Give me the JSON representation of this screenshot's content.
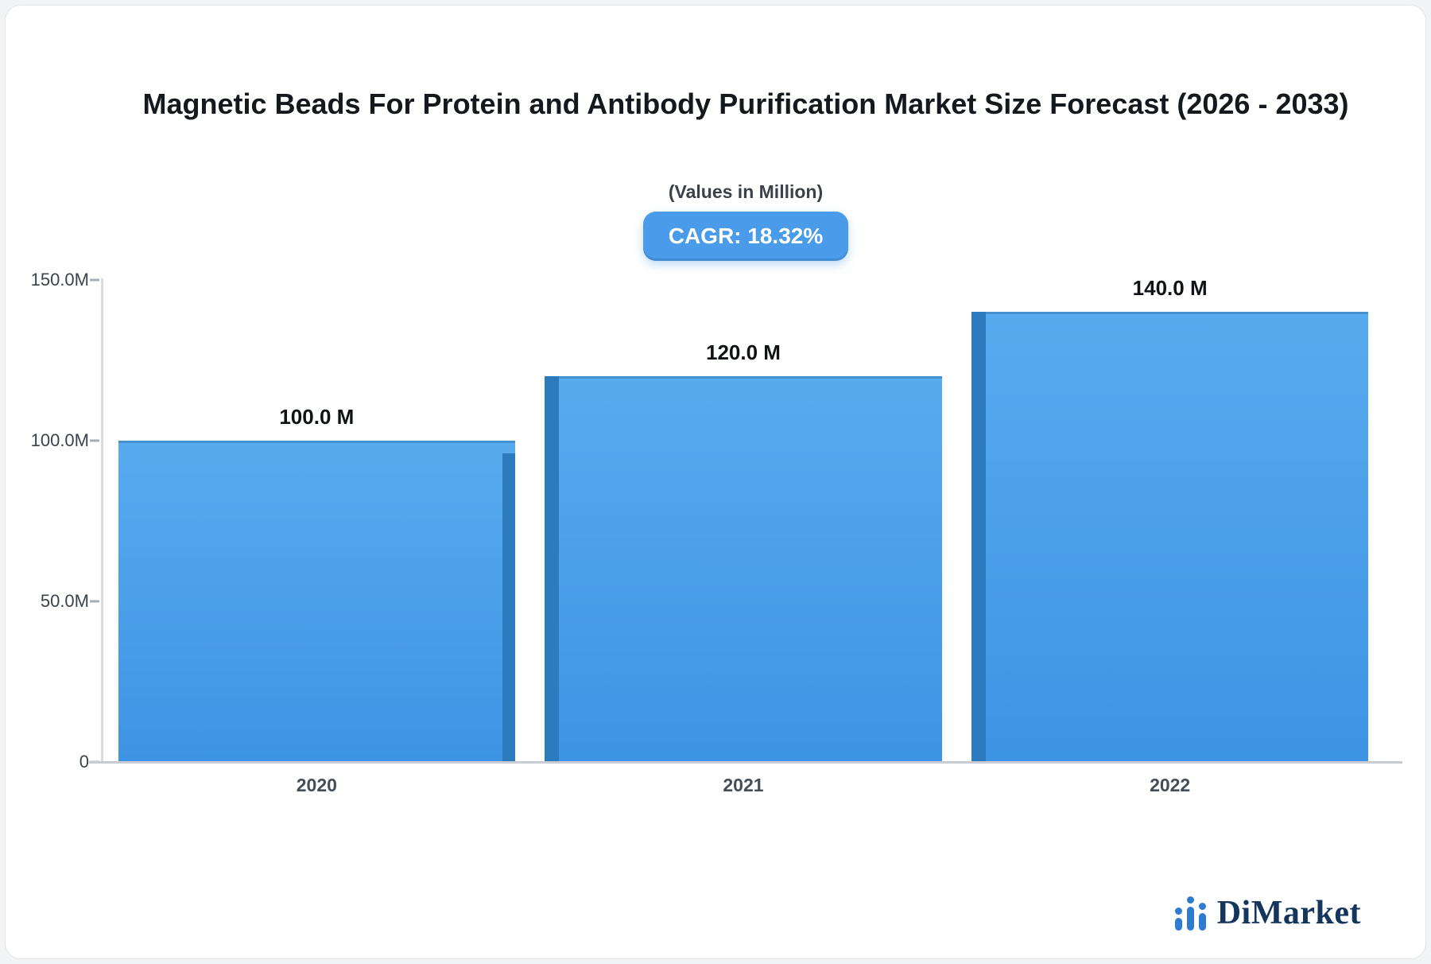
{
  "page": {
    "cagr_badge": "CAGR: 18.32%"
  },
  "chart_data": {
    "type": "bar",
    "title": "Magnetic Beads For Protein and Antibody Purification Market Size Forecast (2026 - 2033)",
    "subtitle": "(Values in Million)",
    "categories": [
      "2020",
      "2021",
      "2022"
    ],
    "values": [
      100.0,
      120.0,
      140.0
    ],
    "value_labels": [
      "100.0 M",
      "120.0 M",
      "140.0 M"
    ],
    "xlabel": "",
    "ylabel": "",
    "ylim": [
      0,
      150
    ],
    "yticks": [
      {
        "value": 0,
        "label": "0"
      },
      {
        "value": 50,
        "label": "50.0M"
      },
      {
        "value": 100,
        "label": "100.0M"
      },
      {
        "value": 150,
        "label": "150.0M"
      }
    ],
    "grid": false,
    "legend": false,
    "colors": {
      "bar_top": "#58ABEF",
      "bar_bottom": "#3E94E4",
      "bar_side": "#2C7BBF",
      "badge": "#4A9CEA"
    }
  },
  "footer": {
    "brand": "DiMarket",
    "logo_color": "#2E7CD0",
    "text_color": "#14365C"
  }
}
